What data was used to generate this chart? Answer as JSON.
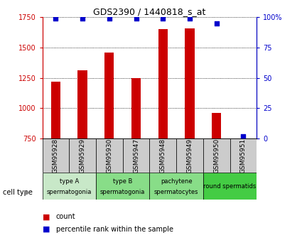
{
  "title": "GDS2390 / 1440818_s_at",
  "samples": [
    "GSM95928",
    "GSM95929",
    "GSM95930",
    "GSM95947",
    "GSM95948",
    "GSM95949",
    "GSM95950",
    "GSM95951"
  ],
  "counts": [
    1220,
    1310,
    1460,
    1250,
    1650,
    1660,
    960,
    750
  ],
  "percentiles": [
    99,
    99,
    99,
    99,
    99,
    99,
    95,
    2
  ],
  "ylim_left": [
    750,
    1750
  ],
  "ylim_right": [
    0,
    100
  ],
  "yticks_left": [
    750,
    1000,
    1250,
    1500,
    1750
  ],
  "yticks_right": [
    0,
    25,
    50,
    75,
    100
  ],
  "bar_color": "#cc0000",
  "dot_color": "#0000cc",
  "cell_groups": [
    {
      "label": "type A\nspermatogonia",
      "start": 0,
      "end": 2,
      "color": "#c8e8c8"
    },
    {
      "label": "type B\nspermatogonia",
      "start": 2,
      "end": 4,
      "color": "#88dd88"
    },
    {
      "label": "pachytene\nspermatocytes",
      "start": 4,
      "end": 6,
      "color": "#88dd88"
    },
    {
      "label": "round spermatids",
      "start": 6,
      "end": 8,
      "color": "#44cc44"
    }
  ],
  "sample_box_color": "#cccccc",
  "bar_width": 0.35,
  "legend_count_label": "count",
  "legend_pct_label": "percentile rank within the sample",
  "cell_type_label": "cell type"
}
